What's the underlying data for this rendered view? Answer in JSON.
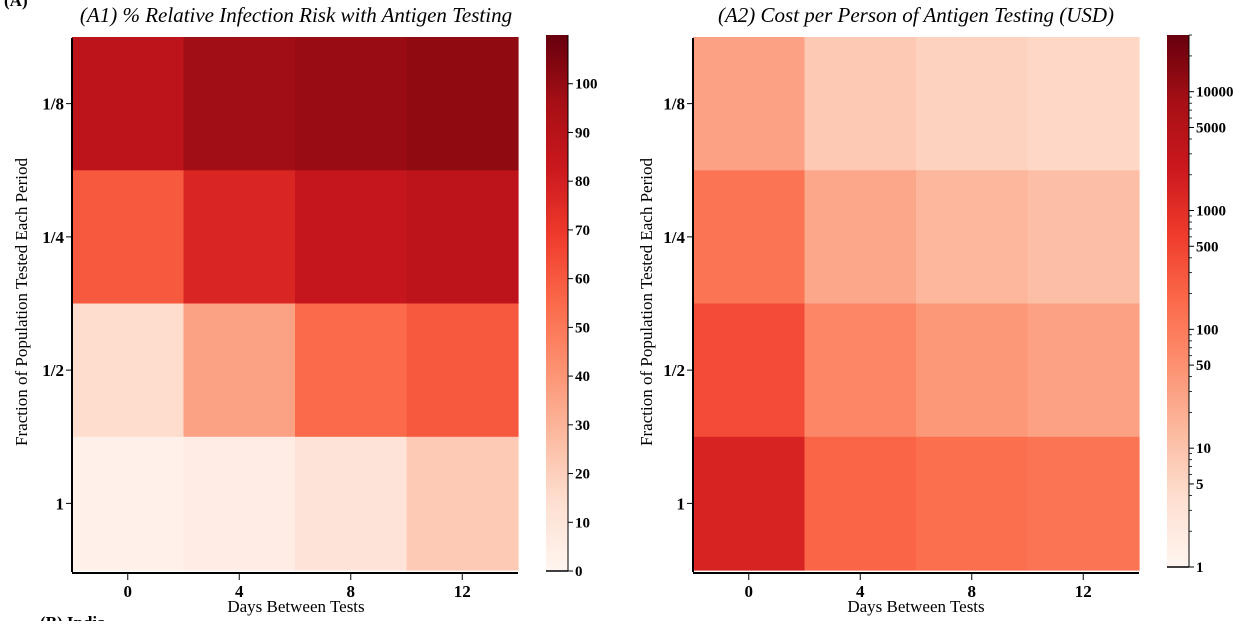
{
  "partial_labels": {
    "top_left": "(A)",
    "bottom_left": "(B) India"
  },
  "chart_data": [
    {
      "type": "heatmap",
      "title": "(A1) % Relative Infection Risk with Antigen Testing",
      "xlabel": "Days Between Tests",
      "ylabel": "Fraction of Population Tested Each Period",
      "x_categories": [
        "0",
        "4",
        "8",
        "12"
      ],
      "y_categories": [
        "1/8",
        "1/4",
        "1/2",
        "1"
      ],
      "values": [
        [
          88,
          97,
          99,
          101
        ],
        [
          60,
          77,
          85,
          88
        ],
        [
          15,
          36,
          55,
          60
        ],
        [
          3,
          5,
          11,
          22
        ]
      ],
      "colorbar": {
        "scale": "linear",
        "min": 0,
        "max": 110,
        "ticks": [
          0,
          10,
          20,
          30,
          40,
          50,
          60,
          70,
          80,
          90,
          100
        ],
        "tick_labels": [
          "0",
          "10",
          "20",
          "30",
          "40",
          "50",
          "60",
          "70",
          "80",
          "90",
          "100"
        ]
      },
      "colormap": "Reds",
      "grid": false
    },
    {
      "type": "heatmap",
      "title": "(A2) Cost per Person of Antigen Testing (USD)",
      "xlabel": "Days Between Tests",
      "ylabel": "Fraction of Population Tested Each Period",
      "x_categories": [
        "0",
        "4",
        "8",
        "12"
      ],
      "y_categories": [
        "1/8",
        "1/4",
        "1/2",
        "1"
      ],
      "values": [
        [
          30,
          8,
          6,
          5
        ],
        [
          120,
          25,
          15,
          12
        ],
        [
          400,
          70,
          40,
          30
        ],
        [
          1500,
          200,
          150,
          120
        ]
      ],
      "colorbar": {
        "scale": "log",
        "min": 1,
        "max": 30000,
        "ticks": [
          1,
          5,
          10,
          50,
          100,
          500,
          1000,
          5000,
          10000
        ],
        "tick_labels": [
          "1",
          "5",
          "10",
          "50",
          "100",
          "500",
          "1000",
          "5000",
          "10000"
        ]
      },
      "colormap": "Reds",
      "grid": false
    }
  ]
}
